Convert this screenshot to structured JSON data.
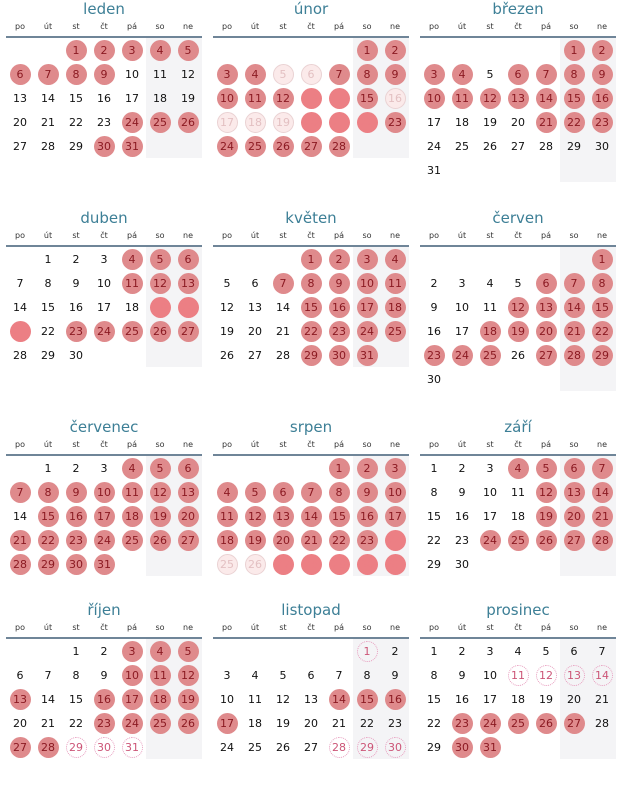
{
  "weekdays": [
    "po",
    "út",
    "st",
    "čt",
    "pá",
    "so",
    "ne"
  ],
  "colors": {
    "title": "#3d7f96",
    "marked": "#df8a8c",
    "strong": "#ec7f84",
    "weekend_bg": "#f4f4f6"
  },
  "months": [
    {
      "name": "leden",
      "days": 31,
      "marks": {
        "m": [
          1,
          2,
          3,
          4,
          5,
          6,
          7,
          8,
          9,
          24,
          25,
          26,
          30,
          31
        ]
      }
    },
    {
      "name": "únor",
      "days": 28,
      "marks": {
        "m": [
          1,
          2,
          3,
          4,
          7,
          8,
          9,
          10,
          11,
          12,
          15,
          23,
          24,
          25,
          26,
          27,
          28
        ],
        "f": [
          5,
          6,
          16,
          17,
          18,
          19
        ],
        "s": [
          13,
          14,
          20,
          21,
          22
        ]
      }
    },
    {
      "name": "březen",
      "days": 31,
      "marks": {
        "m": [
          1,
          2,
          3,
          4,
          6,
          7,
          8,
          9,
          10,
          11,
          12,
          13,
          14,
          15,
          16,
          21,
          22,
          23
        ]
      }
    },
    {
      "name": "duben",
      "days": 30,
      "marks": {
        "m": [
          4,
          5,
          6,
          11,
          12,
          13,
          23,
          24,
          25,
          26,
          27
        ],
        "s": [
          19,
          20,
          21
        ]
      }
    },
    {
      "name": "květen",
      "days": 31,
      "marks": {
        "m": [
          1,
          2,
          3,
          4,
          7,
          8,
          9,
          10,
          11,
          15,
          16,
          17,
          18,
          22,
          23,
          24,
          25,
          29,
          30,
          31
        ]
      }
    },
    {
      "name": "červen",
      "days": 30,
      "marks": {
        "m": [
          1,
          6,
          7,
          8,
          12,
          13,
          14,
          15,
          18,
          19,
          20,
          21,
          22,
          23,
          24,
          25,
          27,
          28,
          29
        ]
      }
    },
    {
      "name": "červenec",
      "days": 31,
      "marks": {
        "m": [
          4,
          5,
          6,
          7,
          8,
          9,
          10,
          11,
          12,
          13,
          15,
          16,
          17,
          18,
          19,
          20,
          21,
          22,
          23,
          24,
          25,
          26,
          27,
          28,
          29,
          30,
          31
        ]
      }
    },
    {
      "name": "srpen",
      "days": 31,
      "marks": {
        "m": [
          1,
          2,
          3,
          4,
          5,
          6,
          7,
          8,
          9,
          10,
          11,
          12,
          13,
          14,
          15,
          16,
          17,
          18,
          19,
          20,
          21,
          22,
          23
        ],
        "s": [
          24,
          27,
          28,
          29,
          30,
          31
        ],
        "f": [
          25,
          26
        ]
      }
    },
    {
      "name": "září",
      "days": 30,
      "marks": {
        "m": [
          4,
          5,
          6,
          7,
          12,
          13,
          14,
          19,
          20,
          21,
          24,
          25,
          26,
          27,
          28
        ]
      }
    },
    {
      "name": "říjen",
      "days": 31,
      "marks": {
        "m": [
          3,
          4,
          5,
          10,
          11,
          12,
          13,
          16,
          17,
          18,
          19,
          23,
          24,
          25,
          26,
          27,
          28
        ],
        "d": [
          29,
          30,
          31
        ]
      }
    },
    {
      "name": "listopad",
      "days": 30,
      "marks": {
        "m": [
          14,
          15,
          16,
          17
        ],
        "d": [
          1,
          28,
          29,
          30
        ]
      }
    },
    {
      "name": "prosinec",
      "days": 31,
      "marks": {
        "m": [
          23,
          24,
          25,
          26,
          27,
          30,
          31
        ],
        "d": [
          11,
          12,
          13,
          14
        ]
      }
    }
  ]
}
